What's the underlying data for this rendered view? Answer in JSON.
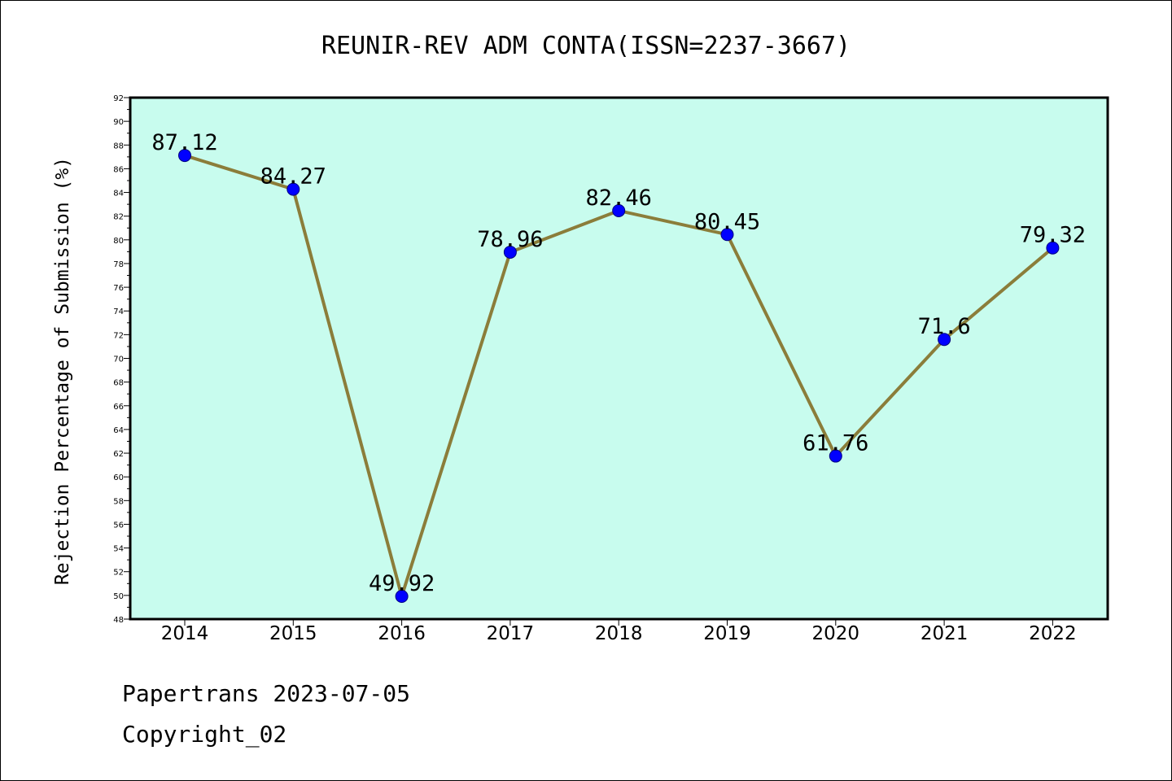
{
  "chart_data": {
    "type": "line",
    "title": "REUNIR-REV ADM CONTA(ISSN=2237-3667)",
    "xlabel": "",
    "ylabel": "Rejection Percentage of Submission (%)",
    "categories": [
      "2014",
      "2015",
      "2016",
      "2017",
      "2018",
      "2019",
      "2020",
      "2021",
      "2022"
    ],
    "series": [
      {
        "values": [
          87.12,
          84.27,
          49.92,
          78.96,
          82.46,
          80.45,
          61.76,
          71.6,
          79.32
        ]
      }
    ],
    "data_labels": [
      "87.12",
      "84.27",
      "49.92",
      "78.96",
      "82.46",
      "80.45",
      "61.76",
      "71.6",
      "79.32"
    ],
    "ylim": [
      48,
      92
    ],
    "yticks": [
      48,
      50,
      52,
      54,
      56,
      58,
      60,
      62,
      64,
      66,
      68,
      70,
      72,
      74,
      76,
      78,
      80,
      82,
      84,
      86,
      88,
      90,
      92
    ],
    "grid": false,
    "legend": "none",
    "colors": {
      "plot_background": "#c8fcee",
      "line": "#8b7d3a",
      "marker_fill": "#0000ff",
      "marker_edge": "#000080"
    }
  },
  "footer": {
    "line1": "Papertrans 2023-07-05",
    "line2": "Copyright_02"
  }
}
